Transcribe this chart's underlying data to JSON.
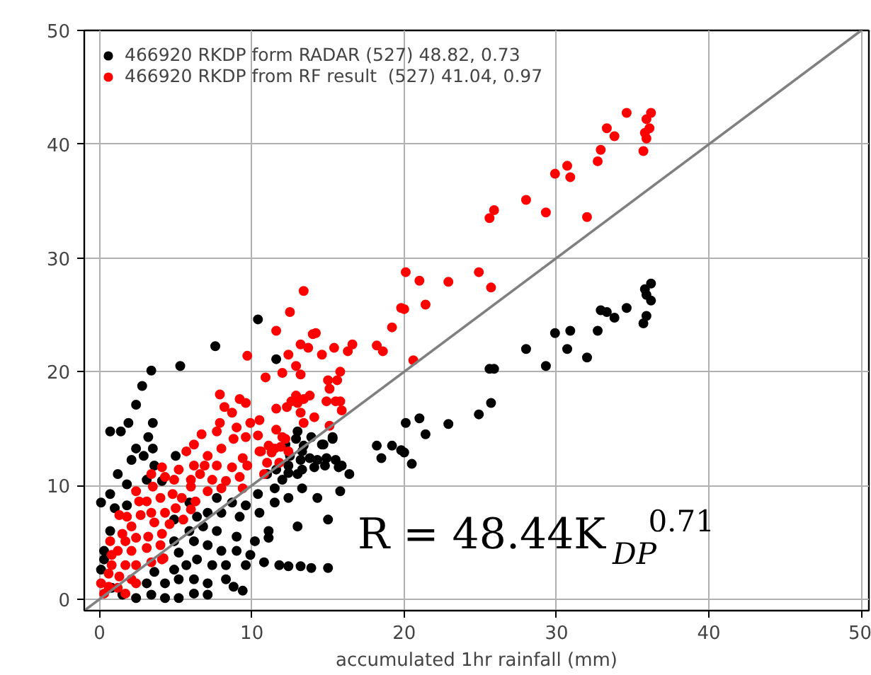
{
  "chart_data": {
    "type": "scatter",
    "xlabel": "accumulated 1hr rainfall (mm)",
    "xlim": [
      -1,
      50.5
    ],
    "ylim": [
      -1,
      50
    ],
    "xticks": [
      0,
      10,
      20,
      30,
      40,
      50
    ],
    "yticks": [
      0,
      10,
      20,
      30,
      40,
      50
    ],
    "grid": true,
    "legend": "top left",
    "annotations": [
      "R = 48.44K$_{DP}$$^{0.71}$"
    ],
    "series": [
      {
        "name": "466920 RKDP form RADAR (527) 48.82, 0.73",
        "color": "#000000",
        "marker": "circle",
        "x": [
          36.2,
          35.8,
          35.9,
          36.2,
          35.7,
          35.9,
          34.6,
          32.9,
          33.3,
          33.8,
          32.7,
          30.9,
          29.9,
          30.7,
          32.0,
          28.0,
          29.3,
          25.6,
          25.9,
          25.7,
          24.9,
          22.9,
          21.0,
          21.4,
          20.1,
          19.8,
          20.0,
          19.2,
          18.5,
          18.2,
          20.5,
          15.3,
          14.6,
          14.9,
          15.5,
          15.9,
          16.4,
          14.1,
          11.6,
          10.4,
          12.9,
          13.4,
          12.2,
          13.2,
          13.8,
          12.5,
          13.3,
          12.4,
          11.6,
          7.6,
          5.3,
          3.4,
          2.8,
          2.4,
          0.7,
          1.4,
          1.9,
          3.5,
          3.2,
          2.4,
          2.9,
          3.5,
          2.1,
          3.6,
          5.0,
          1.8,
          4.1,
          3.1,
          1.0,
          1.8,
          13.0,
          13.9,
          14.7,
          15.3,
          13.3,
          12.4,
          14.3,
          14.8,
          15.7,
          13.0,
          12.0,
          13.3,
          14.3,
          12.4,
          11.5,
          11.0,
          10.4,
          9.6,
          8.7,
          7.7,
          8.0,
          9.2,
          10.5,
          11.5,
          15.8,
          13.0,
          11.1,
          11.1,
          10.2,
          9.0,
          7.7,
          6.8,
          6.2,
          7.1,
          8.0,
          9.0,
          9.9,
          10.8,
          11.8,
          12.4,
          13.2,
          13.9,
          15.0,
          9.6,
          8.3,
          7.4,
          6.4,
          5.7,
          5.2,
          4.9,
          5.9,
          4.9,
          6.4,
          8.3,
          8.8,
          9.4,
          7.1,
          6.2,
          5.2,
          4.3,
          3.4,
          2.4,
          1.5,
          0.8,
          4.3,
          5.2,
          6.2,
          7.1,
          4.9,
          3.6,
          3.1,
          0.3,
          0.3,
          0.1,
          0.1,
          0.7,
          0.7,
          1.2,
          5.9,
          7.1,
          15.0
        ],
        "values": [
          27.75,
          27.25,
          26.75,
          26.25,
          24.25,
          24.9,
          25.6,
          25.4,
          25.25,
          24.75,
          23.6,
          23.6,
          23.4,
          22.0,
          21.25,
          22.0,
          20.5,
          20.25,
          20.25,
          17.25,
          16.25,
          15.4,
          15.9,
          14.5,
          15.5,
          13.1,
          12.9,
          13.5,
          12.4,
          13.5,
          11.9,
          14.1,
          13.6,
          12.4,
          12.25,
          11.75,
          11.0,
          11.6,
          21.1,
          24.6,
          14.1,
          13.5,
          13.6,
          12.25,
          12.4,
          12.6,
          11.4,
          11.1,
          11.4,
          22.25,
          20.5,
          20.1,
          18.75,
          17.1,
          14.75,
          14.75,
          15.5,
          15.5,
          14.25,
          13.25,
          12.6,
          13.25,
          12.25,
          11.75,
          12.6,
          10.1,
          10.4,
          10.5,
          8.0,
          8.25,
          14.75,
          14.25,
          13.6,
          14.25,
          13.0,
          11.75,
          12.25,
          11.75,
          11.6,
          11.0,
          10.5,
          9.75,
          8.9,
          8.9,
          9.75,
          11.0,
          9.25,
          8.25,
          8.5,
          8.9,
          7.6,
          7.25,
          7.6,
          8.5,
          9.5,
          6.4,
          6.0,
          5.4,
          5.1,
          5.5,
          6.0,
          6.4,
          5.1,
          4.75,
          4.25,
          4.25,
          3.9,
          3.25,
          3.0,
          2.9,
          2.9,
          2.75,
          2.75,
          3.0,
          3.0,
          3.0,
          3.5,
          3.0,
          4.1,
          5.1,
          6.0,
          7.0,
          7.25,
          1.75,
          1.1,
          0.75,
          0.4,
          0.5,
          0.1,
          0.1,
          0.4,
          0.1,
          0.4,
          1.0,
          1.4,
          1.75,
          1.75,
          1.4,
          2.6,
          2.4,
          1.4,
          4.25,
          3.5,
          2.6,
          8.5,
          6.0,
          9.25,
          11.0,
          8.5,
          7.6,
          7.0
        ]
      },
      {
        "name": "466920 RKDP from RF result  (527) 41.04, 0.97",
        "color": "#ff0000",
        "marker": "circle",
        "x": [
          34.6,
          35.9,
          36.2,
          36.1,
          35.8,
          35.9,
          35.7,
          33.3,
          33.8,
          32.9,
          32.7,
          30.7,
          30.9,
          29.9,
          28.0,
          29.3,
          32.0,
          25.9,
          25.6,
          24.9,
          25.7,
          20.1,
          21.0,
          22.9,
          19.8,
          20.0,
          21.4,
          19.2,
          20.6,
          13.4,
          12.5,
          11.6,
          14.2,
          14.0,
          13.2,
          13.7,
          14.6,
          15.4,
          16.6,
          16.3,
          18.2,
          18.6,
          12.4,
          10.9,
          12.0,
          12.9,
          13.2,
          15.8,
          15.0,
          15.6,
          15.1,
          14.9,
          15.5,
          15.8,
          15.9,
          12.9,
          12.6,
          13.0,
          13.4,
          13.8,
          12.3,
          13.2,
          14.1,
          11.6,
          13.4,
          15.1,
          10.5,
          11.6,
          12.2,
          11.1,
          10.6,
          11.9,
          11.3,
          11.0,
          11.8,
          10.8,
          9.7,
          7.9,
          8.2,
          9.2,
          9.6,
          8.7,
          7.9,
          9.0,
          9.9,
          10.4,
          6.7,
          7.7,
          6.2,
          5.7,
          7.1,
          8.0,
          8.8,
          9.6,
          10.5,
          11.5,
          12.0,
          12.4,
          9.4,
          9.7,
          8.7,
          7.7,
          6.9,
          6.2,
          6.6,
          7.4,
          8.3,
          9.2,
          9.4,
          8.0,
          7.1,
          6.0,
          5.2,
          4.9,
          4.1,
          4.3,
          3.4,
          3.5,
          2.4,
          2.6,
          1.8,
          1.3,
          3.1,
          4.0,
          4.8,
          5.4,
          6.3,
          6.0,
          5.0,
          4.3,
          3.4,
          2.7,
          2.1,
          3.6,
          4.6,
          5.5,
          4.1,
          3.2,
          2.4,
          1.7,
          1.2,
          2.1,
          3.1,
          4.0,
          4.1,
          3.4,
          2.4,
          1.7,
          0.8,
          0.6,
          1.3,
          2.1,
          0.6,
          1.2,
          0.3,
          0.1,
          1.7,
          2.4,
          0.8,
          1.5,
          0.7,
          4.2,
          6.0
        ],
        "values": [
          42.75,
          42.2,
          42.75,
          41.4,
          41.0,
          40.5,
          39.4,
          41.4,
          40.7,
          39.5,
          38.5,
          38.1,
          37.1,
          37.4,
          35.1,
          34.0,
          33.6,
          34.2,
          33.5,
          28.75,
          27.4,
          28.75,
          28.0,
          27.9,
          25.6,
          25.5,
          25.9,
          23.9,
          21.0,
          27.1,
          25.25,
          23.6,
          23.4,
          23.3,
          22.4,
          22.1,
          21.5,
          22.1,
          22.4,
          21.8,
          22.3,
          21.8,
          21.5,
          19.5,
          19.9,
          20.5,
          19.75,
          20.0,
          19.25,
          19.25,
          18.5,
          17.4,
          17.4,
          17.4,
          16.6,
          17.9,
          17.4,
          17.25,
          17.6,
          17.9,
          16.9,
          16.4,
          16.0,
          16.75,
          15.5,
          15.25,
          15.75,
          14.9,
          14.1,
          13.5,
          13.0,
          13.4,
          12.9,
          12.0,
          12.0,
          11.0,
          21.4,
          18.0,
          16.9,
          17.6,
          17.25,
          16.4,
          15.5,
          15.1,
          15.5,
          14.4,
          14.5,
          14.75,
          13.6,
          13.0,
          12.6,
          13.25,
          14.1,
          14.25,
          13.0,
          13.25,
          14.25,
          13.0,
          12.4,
          11.75,
          11.6,
          11.75,
          11.75,
          11.75,
          11.0,
          10.5,
          10.4,
          10.75,
          9.75,
          9.75,
          9.5,
          9.9,
          11.4,
          10.5,
          11.6,
          10.75,
          11.0,
          9.9,
          9.5,
          8.6,
          7.25,
          7.4,
          8.6,
          8.9,
          9.25,
          8.9,
          8.6,
          7.9,
          8.0,
          7.6,
          7.6,
          7.4,
          6.4,
          6.75,
          6.6,
          7.0,
          5.75,
          5.5,
          5.4,
          5.1,
          4.25,
          4.25,
          4.5,
          4.75,
          3.5,
          3.25,
          3.0,
          3.0,
          3.0,
          2.25,
          2.0,
          1.75,
          1.1,
          1.0,
          0.5,
          1.4,
          0.5,
          1.4,
          3.9,
          5.75,
          5.1,
          3.6,
          10.5
        ]
      },
      {
        "type": "line",
        "color": "#808080",
        "x": [
          -1,
          50
        ],
        "values": [
          -1,
          50
        ]
      }
    ]
  }
}
